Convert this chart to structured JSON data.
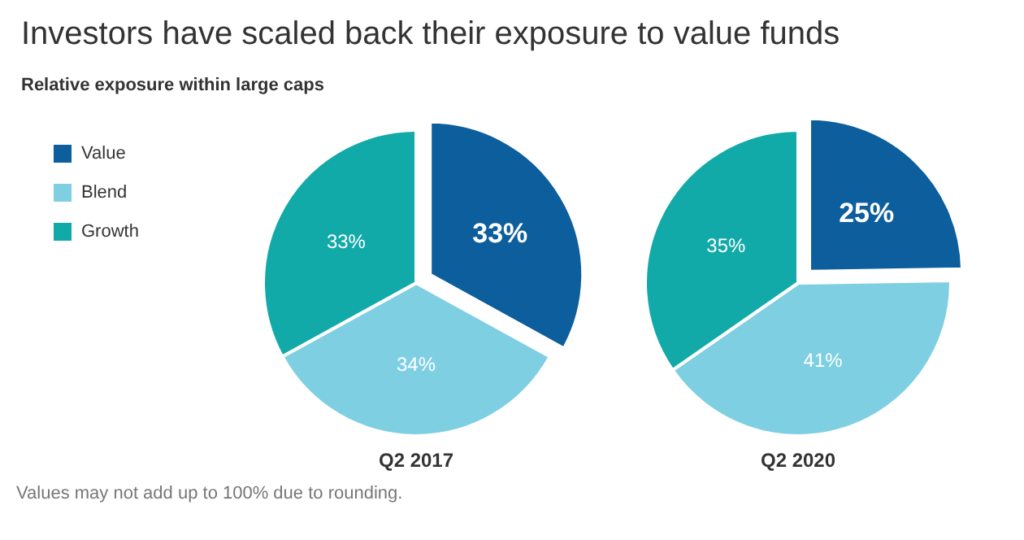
{
  "chart_data": {
    "type": "pie",
    "title": "Investors have scaled back their exposure to value funds",
    "subtitle": "Relative exposure within large caps",
    "categories": [
      "Value",
      "Blend",
      "Growth"
    ],
    "colors": [
      "#0d5e9c",
      "#7fcfe3",
      "#12aaa8"
    ],
    "legend": "top left",
    "annotations": [
      "Values may not add up to 100% due to rounding."
    ],
    "series": [
      {
        "name": "Q2 2017",
        "values": [
          33,
          34,
          33
        ],
        "value_labels": [
          "33%",
          "34%",
          "33%"
        ]
      },
      {
        "name": "Q2 2020",
        "values": [
          25,
          41,
          35
        ],
        "value_labels": [
          "25%",
          "41%",
          "35%"
        ]
      }
    ]
  }
}
